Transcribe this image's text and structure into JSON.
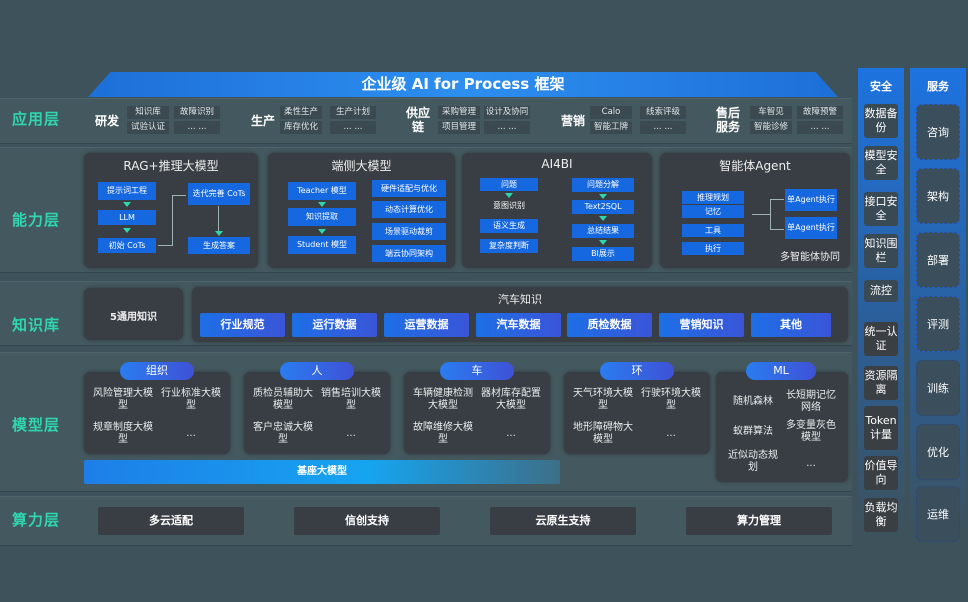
{
  "title": "企业级 AI for Process 框架",
  "layers": {
    "app": "应用层",
    "ability": "能力层",
    "knowledge": "知识库",
    "model": "模型层",
    "compute": "算力层"
  },
  "app_groups": [
    {
      "name": "研发",
      "items": [
        "知识库",
        "故障识别",
        "试验认证",
        "... ..."
      ]
    },
    {
      "name": "生产",
      "items": [
        "柔性生产",
        "生产计划",
        "库存优化",
        "... ..."
      ]
    },
    {
      "name": "供应链",
      "items": [
        "采购管理",
        "设计及协同",
        "项目管理",
        "... ..."
      ]
    },
    {
      "name": "营销",
      "items": [
        "Calo",
        "线索评级",
        "智能工牌",
        "... ..."
      ]
    },
    {
      "name": "售后服务",
      "items": [
        "车智见",
        "故障预警",
        "智能诊修",
        "... ..."
      ]
    }
  ],
  "ability": {
    "rag": {
      "title": "RAG+推理大模型",
      "items": [
        "提示词工程",
        "LLM",
        "初始 CoTs",
        "迭代完善 CoTs",
        "生成答案"
      ]
    },
    "edge": {
      "title": "端侧大模型",
      "left": [
        "Teacher 模型",
        "知识提取",
        "Student 模型"
      ],
      "right": [
        "硬件适配与优化",
        "动态计算优化",
        "场景驱动裁剪",
        "端云协同架构"
      ]
    },
    "ai4bi": {
      "title": "AI4BI",
      "left": [
        "问题",
        "意图识别",
        "语义生成",
        "复杂度判断"
      ],
      "right": [
        "问题分解",
        "Text2SQL",
        "总结结果",
        "BI展示"
      ]
    },
    "agent": {
      "title": "智能体Agent",
      "left": [
        "推理规划",
        "记忆",
        "工具",
        "执行"
      ],
      "right": [
        "单Agent执行",
        "单Agent执行"
      ],
      "footer": "多智能体协同"
    }
  },
  "knowledge": {
    "general": "5通用知识",
    "auto_title": "汽车知识",
    "auto_items": [
      "行业规范",
      "运行数据",
      "运营数据",
      "汽车数据",
      "质检数据",
      "营销知识",
      "其他"
    ]
  },
  "model": {
    "groups": [
      {
        "name": "组织",
        "items": [
          "风险管理大模型",
          "行业标准大模型",
          "规章制度大模型",
          "..."
        ]
      },
      {
        "name": "人",
        "items": [
          "质检员辅助大模型",
          "销售培训大模型",
          "客户忠诚大模型",
          "..."
        ]
      },
      {
        "name": "车",
        "items": [
          "车辆健康检测大模型",
          "器材库存配置大模型",
          "故障维修大模型",
          "..."
        ]
      },
      {
        "name": "环",
        "items": [
          "天气环境大模型",
          "行驶环境大模型",
          "地形障碍物大模型",
          "..."
        ]
      },
      {
        "name": "ML",
        "items": [
          "随机森林",
          "长短期记忆网络",
          "蚁群算法",
          "多变量灰色模型",
          "近似动态规划",
          "..."
        ]
      }
    ],
    "base": "基座大模型"
  },
  "compute": [
    "多云适配",
    "信创支持",
    "云原生支持",
    "算力管理"
  ],
  "security": {
    "title": "安全",
    "items": [
      "数据备份",
      "模型安全",
      "接口安全",
      "知识围栏",
      "流控",
      "统一认证",
      "资源隔离",
      "Token计量",
      "价值导向",
      "负载均衡"
    ]
  },
  "service": {
    "title": "服务",
    "items": [
      "咨询",
      "架构",
      "部署",
      "评测",
      "训练",
      "优化",
      "运维"
    ]
  }
}
